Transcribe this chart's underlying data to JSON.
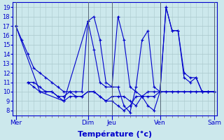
{
  "background_color": "#cce8ec",
  "grid_color": "#aac8cc",
  "line_color": "#0000cc",
  "xlabel": "Température (°c)",
  "xlabel_fontsize": 8,
  "yticks": [
    8,
    9,
    10,
    11,
    12,
    13,
    14,
    15,
    16,
    17,
    18,
    19
  ],
  "ylim": [
    7.5,
    19.5
  ],
  "day_labels": [
    "Mer",
    "Dim",
    "Jeu",
    "Ven",
    "Sam"
  ],
  "day_tick_positions": [
    0,
    12,
    16,
    24,
    33
  ],
  "minor_tick_count": 34,
  "series": [
    {
      "x": [
        0,
        1,
        2,
        3,
        4,
        5,
        6,
        7,
        8,
        9,
        10,
        11,
        12,
        13,
        14,
        15,
        16,
        17,
        18,
        19,
        20,
        21,
        22,
        23,
        24,
        25,
        26,
        27,
        28,
        29,
        30,
        31,
        32,
        33
      ],
      "y": [
        17.0,
        15.5,
        14.0,
        12.5,
        12.0,
        11.5,
        11.0,
        10.5,
        10.0,
        10.0,
        10.0,
        10.0,
        17.5,
        14.5,
        11.0,
        10.5,
        10.5,
        18.0,
        15.5,
        10.5,
        10.0,
        9.5,
        8.5,
        8.0,
        10.0,
        19.0,
        16.5,
        16.5,
        11.5,
        11.0,
        11.5,
        10.0,
        10.0,
        10.0
      ]
    },
    {
      "x": [
        2,
        3,
        4,
        5,
        6,
        7,
        8,
        9,
        10,
        11,
        12,
        13,
        14,
        15,
        16,
        17,
        18,
        19,
        20,
        21,
        22,
        23,
        24,
        25,
        26,
        27,
        28,
        29,
        30,
        31,
        32,
        33
      ],
      "y": [
        11.0,
        11.0,
        10.5,
        10.0,
        10.0,
        9.5,
        9.5,
        10.0,
        9.5,
        9.5,
        10.0,
        10.0,
        9.5,
        9.0,
        9.5,
        9.5,
        9.5,
        9.0,
        8.5,
        9.5,
        9.5,
        9.5,
        10.0,
        10.0,
        10.0,
        10.0,
        10.0,
        10.0,
        10.0,
        10.0,
        10.0,
        10.0
      ]
    },
    {
      "x": [
        0,
        4,
        8,
        12,
        13,
        14,
        15,
        16,
        17,
        18,
        19,
        20,
        21,
        22,
        23,
        24,
        25,
        26,
        27,
        28,
        29,
        30,
        31,
        32,
        33
      ],
      "y": [
        17.0,
        10.0,
        9.0,
        17.5,
        18.0,
        15.5,
        11.0,
        10.5,
        10.5,
        8.5,
        7.8,
        10.5,
        15.5,
        16.5,
        10.5,
        10.0,
        19.0,
        16.5,
        16.5,
        12.0,
        11.5,
        11.5,
        10.0,
        10.0,
        10.0
      ]
    },
    {
      "x": [
        2,
        3,
        4,
        5,
        6,
        7,
        8,
        9,
        10,
        11,
        12,
        13,
        14,
        15,
        16,
        17,
        18,
        19,
        20,
        21,
        22,
        23,
        24,
        25,
        26,
        27,
        28,
        29,
        30,
        31,
        32,
        33
      ],
      "y": [
        11.0,
        10.5,
        10.0,
        10.0,
        10.0,
        9.5,
        9.0,
        9.5,
        9.5,
        9.5,
        10.0,
        10.0,
        9.5,
        9.0,
        9.0,
        8.5,
        8.0,
        8.5,
        9.5,
        9.5,
        10.0,
        10.0,
        10.0,
        10.0,
        10.0,
        10.0,
        10.0,
        10.0,
        10.0,
        10.0,
        10.0,
        10.0
      ]
    }
  ]
}
